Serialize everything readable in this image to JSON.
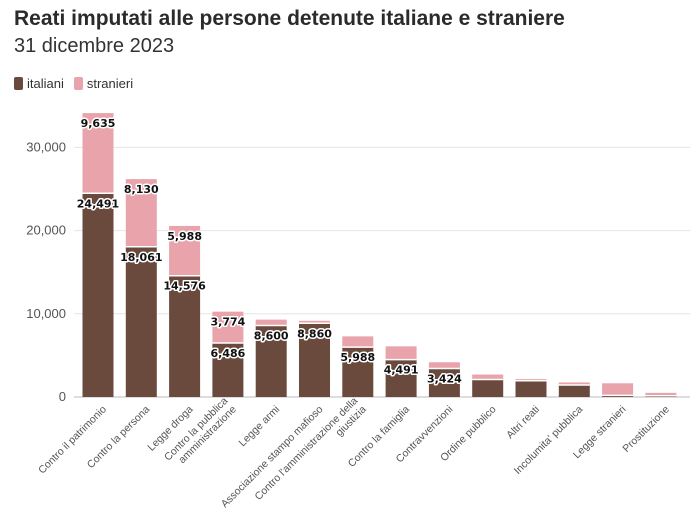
{
  "chart_data": {
    "type": "bar",
    "stacked": true,
    "title": "Reati imputati alle persone detenute italiane e straniere",
    "subtitle": "31 dicembre 2023",
    "categories": [
      "Contro il patrimonio",
      "Contro la persona",
      "Legge droga",
      "Contro la pubblica amministrazione",
      "Legge armi",
      "Associazione stampo mafioso",
      "Contro l'amministrazione della giustizia",
      "Contro la famiglia",
      "Contravvenzioni",
      "Ordine pubblico",
      "Altri reati",
      "Incolumita' pubblica",
      "Legge stranieri",
      "Prostituzione"
    ],
    "category_lines": [
      [
        "Contro il patrimonio"
      ],
      [
        "Contro la persona"
      ],
      [
        "Legge droga"
      ],
      [
        "Contro la pubblica",
        "amministrazione"
      ],
      [
        "Legge armi"
      ],
      [
        "Associazione stampo mafioso"
      ],
      [
        "Contro l'amministrazione della",
        "giustizia"
      ],
      [
        "Contro la famiglia"
      ],
      [
        "Contravvenzioni"
      ],
      [
        "Ordine pubblico"
      ],
      [
        "Altri reati"
      ],
      [
        "Incolumita' pubblica"
      ],
      [
        "Legge stranieri"
      ],
      [
        "Prostituzione"
      ]
    ],
    "series": [
      {
        "name": "italiani",
        "color": "#6b4a3e",
        "values": [
          24491,
          18061,
          14576,
          6486,
          8600,
          8860,
          5988,
          4491,
          3424,
          2100,
          1950,
          1450,
          200,
          150
        ],
        "labels": [
          "24,491",
          "18,061",
          "14,576",
          "6,486",
          "8,600",
          "8,860",
          "5,988",
          "4,491",
          "3,424",
          null,
          null,
          null,
          null,
          null
        ]
      },
      {
        "name": "stranieri",
        "color": "#e8a3ab",
        "values": [
          9635,
          8130,
          5988,
          3774,
          700,
          300,
          1300,
          1600,
          750,
          600,
          200,
          300,
          1450,
          350
        ],
        "labels": [
          "9,635",
          "8,130",
          "5,988",
          "3,774",
          null,
          null,
          null,
          null,
          null,
          null,
          null,
          null,
          null,
          null
        ]
      }
    ],
    "ylim": [
      0,
      34500
    ],
    "yticks": [
      0,
      10000,
      20000,
      30000
    ],
    "ytick_labels": [
      "0",
      "10,000",
      "20,000",
      "30,000"
    ],
    "grid": true,
    "legend": "top-left"
  }
}
